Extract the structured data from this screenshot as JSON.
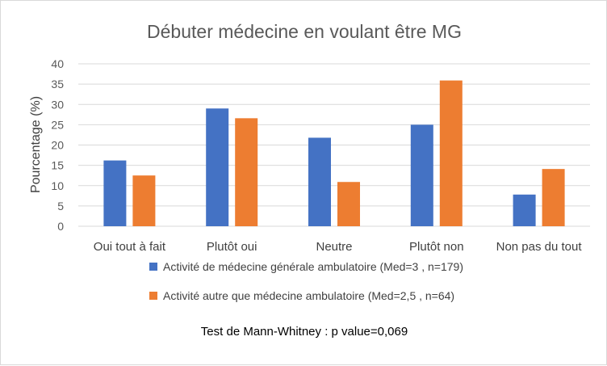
{
  "chart_data": {
    "type": "bar",
    "title": "Débuter médecine en voulant être MG",
    "ylabel": "Pourcentage (%)",
    "xlabel": "",
    "ylim": [
      0,
      40
    ],
    "yticks": [
      0,
      5,
      10,
      15,
      20,
      25,
      30,
      35,
      40
    ],
    "categories": [
      "Oui tout à fait",
      "Plutôt oui",
      "Neutre",
      "Plutôt non",
      "Non pas du tout"
    ],
    "series": [
      {
        "name": "Activité de médecine générale ambulatoire (Med=3 , n=179)",
        "color": "#4472c4",
        "values": [
          16.2,
          29.0,
          21.8,
          25.0,
          7.8
        ]
      },
      {
        "name": "Activité autre que médecine ambulatoire (Med=2,5 , n=64)",
        "color": "#ed7d31",
        "values": [
          12.5,
          26.6,
          10.9,
          35.9,
          14.1
        ]
      }
    ],
    "grid": true,
    "legend_position": "bottom",
    "annotation": "Test de Mann-Whitney : p value=0,069"
  }
}
